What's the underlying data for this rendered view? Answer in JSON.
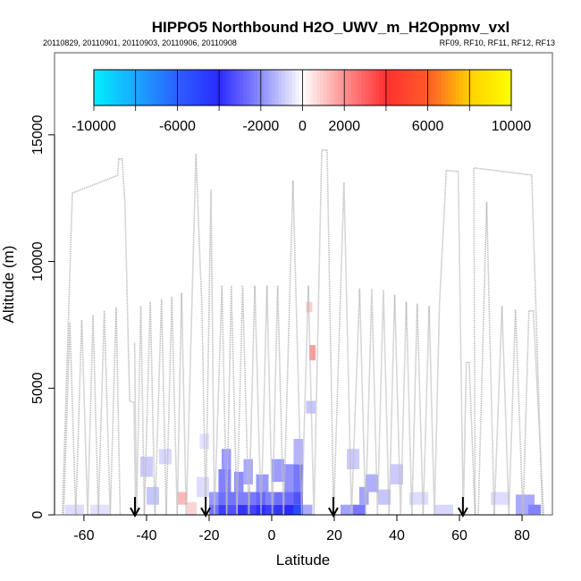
{
  "chart_data": {
    "type": "heatmap",
    "title": "HIPPO5 Northbound H2O_UWV_m_H2Oppmv_vxl",
    "subtitle_left": "20110829, 20110901, 20110903, 20110906, 20110908",
    "subtitle_right": "RF09, RF10, RF11, RF12, RF13",
    "xlabel": "Latitude",
    "ylabel": "Altitude (m)",
    "xlim": [
      -69.4,
      89.7
    ],
    "ylim": [
      0,
      18240
    ],
    "x_ticks": [
      -60,
      -40,
      -20,
      0,
      20,
      40,
      60,
      80
    ],
    "x_tick_labels": [
      "-60",
      "-40",
      "-20",
      "0",
      "20",
      "40",
      "60",
      "80"
    ],
    "y_ticks": [
      0,
      5000,
      10000,
      15000
    ],
    "y_tick_labels": [
      "0",
      "5000",
      "10000",
      "15000"
    ],
    "colorbar": {
      "range": [
        -10000,
        10000
      ],
      "breaks": [
        -10000,
        -8000,
        -6000,
        -4000,
        -2000,
        0,
        2000,
        4000,
        6000,
        8000,
        10000
      ],
      "labels": [
        "-10000",
        "-6000",
        "-2000",
        "0",
        "2000",
        "6000",
        "10000"
      ],
      "label_values": [
        -10000,
        -6000,
        -2000,
        0,
        2000,
        6000,
        10000
      ],
      "colors": [
        "#00f0ff",
        "#1aa8ff",
        "#2a60ff",
        "#2a2aff",
        "#ffffff",
        "#ff3030",
        "#ff5a28",
        "#ff9a18",
        "#ffd000",
        "#ffff00"
      ]
    },
    "arrows_lat": [
      -43.7,
      -21.1,
      19.7,
      61.1
    ],
    "flight_track": [
      [
        [
          -66.9,
          0
        ],
        [
          -63.7,
          12700
        ],
        [
          -49.2,
          13400
        ],
        [
          -48.9,
          14050
        ],
        [
          -47.8,
          14050
        ],
        [
          -46.9,
          12300
        ],
        [
          -45.4,
          4500
        ],
        [
          -44,
          4430
        ],
        [
          -43.5,
          0
        ]
      ],
      [
        [
          -66.5,
          0
        ],
        [
          -64.5,
          7600
        ],
        [
          -62.6,
          0
        ],
        [
          -60.7,
          7700
        ],
        [
          -58.8,
          0
        ],
        [
          -57.1,
          7890
        ],
        [
          -55.4,
          0
        ],
        [
          -53.5,
          8060
        ],
        [
          -51.6,
          0
        ],
        [
          -49.7,
          8200
        ],
        [
          -48.4,
          0
        ]
      ],
      [
        [
          -43.8,
          6800
        ],
        [
          -43.2,
          0
        ],
        [
          -41.8,
          8240
        ],
        [
          -40.7,
          0
        ],
        [
          -38.8,
          8410
        ],
        [
          -37.3,
          0
        ],
        [
          -35.2,
          8520
        ],
        [
          -33.7,
          0
        ],
        [
          -31.9,
          8620
        ],
        [
          -30.2,
          0
        ],
        [
          -28.8,
          8760
        ],
        [
          -27.3,
          0
        ],
        [
          -24.2,
          14260
        ],
        [
          -22.9,
          9960
        ],
        [
          -22.3,
          8300
        ],
        [
          -21.1,
          0
        ],
        [
          -19.4,
          12850
        ],
        [
          -18.3,
          0
        ],
        [
          -15.9,
          9050
        ],
        [
          -14.4,
          0
        ],
        [
          -12.9,
          9050
        ],
        [
          -11.1,
          0
        ],
        [
          -9.3,
          9050
        ],
        [
          -7.3,
          0
        ],
        [
          -5.4,
          9050
        ],
        [
          -3.4,
          0
        ],
        [
          -1.5,
          9050
        ],
        [
          0.2,
          0
        ],
        [
          1.9,
          9050
        ],
        [
          3.8,
          0
        ],
        [
          6.8,
          13200
        ],
        [
          9.6,
          0
        ],
        [
          11.7,
          9050
        ],
        [
          13.5,
          0
        ],
        [
          16,
          14400
        ],
        [
          17.7,
          14400
        ],
        [
          19.8,
          0
        ],
        [
          23.1,
          13130
        ],
        [
          25.5,
          0
        ],
        [
          28.1,
          8940
        ],
        [
          30,
          0
        ],
        [
          32,
          8920
        ],
        [
          33.8,
          0
        ],
        [
          35.7,
          8890
        ],
        [
          37.5,
          0
        ],
        [
          39.3,
          8690
        ],
        [
          41.2,
          0
        ],
        [
          43,
          8410
        ],
        [
          44.8,
          0
        ],
        [
          46.5,
          8340
        ],
        [
          48.4,
          0
        ],
        [
          50.3,
          8240
        ],
        [
          52,
          0
        ],
        [
          53.6,
          8270
        ],
        [
          55.8,
          13590
        ],
        [
          59.6,
          13550
        ],
        [
          61.2,
          0
        ],
        [
          62.2,
          6020
        ],
        [
          63.1,
          6020
        ],
        [
          65,
          0
        ],
        [
          64.6,
          13700
        ],
        [
          83.1,
          13410
        ],
        [
          86.5,
          0
        ]
      ],
      [
        [
          66,
          0
        ],
        [
          68.7,
          12350
        ],
        [
          71.1,
          0
        ],
        [
          73.6,
          8240
        ],
        [
          75.8,
          0
        ],
        [
          77.9,
          8100
        ],
        [
          80.3,
          0
        ],
        [
          82.2,
          8050
        ],
        [
          83.6,
          8050
        ],
        [
          86.9,
          0
        ]
      ]
    ],
    "cells": [
      [
        -66,
        -60,
        0,
        400,
        -600
      ],
      [
        -58,
        -52,
        0,
        400,
        -500
      ],
      [
        -42,
        -38,
        1500,
        2300,
        -900
      ],
      [
        -40,
        -36,
        400,
        1100,
        -1000
      ],
      [
        -36,
        -32,
        2000,
        2600,
        -700
      ],
      [
        -30,
        -27,
        400,
        900,
        1300
      ],
      [
        -27,
        -24,
        0,
        500,
        800
      ],
      [
        -24,
        -20,
        700,
        1500,
        -600
      ],
      [
        -20,
        -17,
        0,
        400,
        -2500
      ],
      [
        -20,
        -16,
        400,
        900,
        -1800
      ],
      [
        -17,
        -14,
        0,
        400,
        -3600
      ],
      [
        -17,
        -14,
        400,
        900,
        -2600
      ],
      [
        -17,
        -13,
        900,
        1800,
        -2200
      ],
      [
        -16,
        -13,
        1800,
        2600,
        -1800
      ],
      [
        -14,
        -11,
        0,
        400,
        -3200
      ],
      [
        -14,
        -11,
        400,
        900,
        -2500
      ],
      [
        -12,
        -9,
        900,
        1700,
        -2000
      ],
      [
        -11,
        -8,
        0,
        400,
        -3800
      ],
      [
        -11,
        -8,
        400,
        900,
        -2300
      ],
      [
        -9,
        -6,
        1200,
        2200,
        -1500
      ],
      [
        -8,
        -5,
        0,
        400,
        -3500
      ],
      [
        -8,
        -5,
        400,
        900,
        -2400
      ],
      [
        -5,
        -2,
        0,
        400,
        -4200
      ],
      [
        -5,
        -2,
        400,
        900,
        -2800
      ],
      [
        -5,
        -1,
        900,
        1600,
        -1800
      ],
      [
        -2,
        1,
        0,
        400,
        -3600
      ],
      [
        -2,
        1,
        400,
        900,
        -2200
      ],
      [
        1,
        4,
        0,
        400,
        -3800
      ],
      [
        1,
        4,
        400,
        900,
        -2600
      ],
      [
        0,
        4,
        1300,
        2200,
        -1700
      ],
      [
        4,
        7,
        0,
        400,
        -4000
      ],
      [
        4,
        7,
        400,
        900,
        -2700
      ],
      [
        4,
        7,
        900,
        2000,
        -1900
      ],
      [
        7,
        10,
        0,
        400,
        -5200
      ],
      [
        7,
        10,
        400,
        900,
        -3200
      ],
      [
        7,
        10,
        900,
        2000,
        -2400
      ],
      [
        7,
        10,
        2000,
        3000,
        -1300
      ],
      [
        10,
        13,
        0,
        400,
        -1500
      ],
      [
        11,
        14,
        4000,
        4500,
        -1000
      ],
      [
        12,
        14,
        6100,
        6700,
        1800
      ],
      [
        11,
        13,
        8000,
        8400,
        900
      ],
      [
        22,
        26,
        0,
        400,
        -1600
      ],
      [
        26,
        30,
        0,
        400,
        -2400
      ],
      [
        28,
        31,
        400,
        1100,
        -1600
      ],
      [
        30,
        34,
        900,
        1600,
        -1400
      ],
      [
        34,
        38,
        400,
        1000,
        -1000
      ],
      [
        38,
        42,
        1200,
        2000,
        -900
      ],
      [
        44,
        50,
        400,
        900,
        -600
      ],
      [
        52,
        58,
        0,
        400,
        -700
      ],
      [
        70,
        76,
        400,
        900,
        -600
      ],
      [
        78,
        84,
        0,
        800,
        -1500
      ],
      [
        82,
        86,
        0,
        400,
        -2200
      ],
      [
        24,
        28,
        1800,
        2600,
        -900
      ],
      [
        -23,
        -20,
        2600,
        3200,
        -500
      ]
    ]
  }
}
